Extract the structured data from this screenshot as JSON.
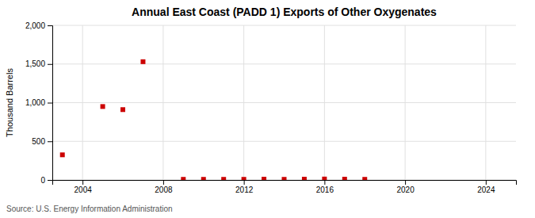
{
  "chart_data": {
    "type": "scatter",
    "title": "Annual East Coast (PADD 1) Exports of Other Oxygenates",
    "ylabel": "Thousand Barrels",
    "source": "Source: U.S. Energy Information Administration",
    "x": [
      2003,
      2005,
      2006,
      2007,
      2009,
      2010,
      2011,
      2012,
      2013,
      2014,
      2015,
      2016,
      2017,
      2018
    ],
    "values": [
      325,
      950,
      910,
      1530,
      8,
      8,
      8,
      8,
      10,
      8,
      10,
      12,
      10,
      8
    ],
    "color": "#cc0000",
    "marker": "square",
    "xlim": [
      2002.5,
      2025.5
    ],
    "ylim": [
      0,
      2000
    ],
    "xticks": [
      2004,
      2008,
      2012,
      2016,
      2020,
      2024
    ],
    "yticks": [
      0,
      500,
      {
        "value": 1000,
        "label": "1,000"
      },
      {
        "value": 1500,
        "label": "1,500"
      },
      {
        "value": 2000,
        "label": "2,000"
      }
    ],
    "grid": true
  }
}
